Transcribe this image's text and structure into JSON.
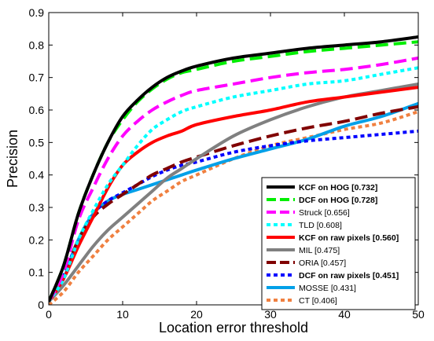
{
  "chart_data": {
    "type": "line",
    "xlabel": "Location error threshold",
    "ylabel": "Precision",
    "xlim": [
      0,
      50
    ],
    "ylim": [
      0,
      0.9
    ],
    "xticks": [
      "0",
      "10",
      "20",
      "30",
      "40",
      "50"
    ],
    "yticks": [
      "0",
      "0.1",
      "0.2",
      "0.3",
      "0.4",
      "0.5",
      "0.6",
      "0.7",
      "0.8",
      "0.9"
    ],
    "grid": false,
    "legend_position": "lower-right",
    "x": [
      0,
      2,
      4,
      6,
      8,
      10,
      12,
      14,
      16,
      18,
      20,
      25,
      30,
      35,
      40,
      45,
      50
    ],
    "series": [
      {
        "name": "KCF on HOG [0.732]",
        "bold": true,
        "color": "#000000",
        "style": "solid",
        "values": [
          0.01,
          0.12,
          0.28,
          0.4,
          0.5,
          0.58,
          0.63,
          0.67,
          0.7,
          0.72,
          0.735,
          0.76,
          0.775,
          0.79,
          0.8,
          0.81,
          0.825
        ]
      },
      {
        "name": "DCF on HOG [0.728]",
        "bold": true,
        "color": "#00ee00",
        "style": "dashed",
        "values": [
          0.01,
          0.12,
          0.28,
          0.4,
          0.5,
          0.57,
          0.625,
          0.665,
          0.695,
          0.715,
          0.725,
          0.75,
          0.765,
          0.78,
          0.79,
          0.8,
          0.81
        ]
      },
      {
        "name": "Struck [0.656]",
        "bold": false,
        "color": "#ff00ff",
        "style": "dashed",
        "values": [
          0.01,
          0.1,
          0.26,
          0.36,
          0.45,
          0.52,
          0.565,
          0.6,
          0.625,
          0.645,
          0.66,
          0.68,
          0.7,
          0.715,
          0.725,
          0.74,
          0.76
        ]
      },
      {
        "name": "TLD [0.608]",
        "bold": false,
        "color": "#00ffff",
        "style": "dotted",
        "values": [
          0.01,
          0.08,
          0.2,
          0.29,
          0.37,
          0.43,
          0.49,
          0.54,
          0.57,
          0.595,
          0.61,
          0.64,
          0.66,
          0.68,
          0.69,
          0.71,
          0.73
        ]
      },
      {
        "name": "KCF on raw pixels [0.560]",
        "bold": true,
        "color": "#ff0000",
        "style": "solid",
        "values": [
          0.01,
          0.08,
          0.18,
          0.27,
          0.36,
          0.43,
          0.47,
          0.5,
          0.52,
          0.535,
          0.555,
          0.58,
          0.6,
          0.625,
          0.64,
          0.655,
          0.67
        ]
      },
      {
        "name": "MIL [0.475]",
        "bold": false,
        "color": "#808080",
        "style": "solid",
        "values": [
          0.01,
          0.06,
          0.12,
          0.18,
          0.23,
          0.27,
          0.31,
          0.35,
          0.39,
          0.42,
          0.45,
          0.52,
          0.57,
          0.61,
          0.64,
          0.66,
          0.68
        ]
      },
      {
        "name": "ORIA [0.457]",
        "bold": false,
        "color": "#800000",
        "style": "dashed",
        "values": [
          0.01,
          0.09,
          0.2,
          0.27,
          0.31,
          0.34,
          0.37,
          0.4,
          0.42,
          0.44,
          0.455,
          0.49,
          0.52,
          0.545,
          0.565,
          0.59,
          0.61
        ]
      },
      {
        "name": "DCF on raw pixels [0.451]",
        "bold": true,
        "color": "#0000ff",
        "style": "dotted",
        "values": [
          0.01,
          0.09,
          0.2,
          0.28,
          0.32,
          0.345,
          0.37,
          0.395,
          0.415,
          0.43,
          0.44,
          0.47,
          0.49,
          0.505,
          0.515,
          0.525,
          0.535
        ]
      },
      {
        "name": "MOSSE [0.431]",
        "bold": false,
        "color": "#00a0e8",
        "style": "solid",
        "values": [
          0.01,
          0.08,
          0.2,
          0.28,
          0.32,
          0.34,
          0.355,
          0.37,
          0.385,
          0.4,
          0.415,
          0.45,
          0.48,
          0.51,
          0.55,
          0.58,
          0.62
        ]
      },
      {
        "name": "CT [0.406]",
        "bold": false,
        "color": "#f08040",
        "style": "dotted",
        "values": [
          0.0,
          0.04,
          0.1,
          0.15,
          0.2,
          0.24,
          0.28,
          0.32,
          0.35,
          0.38,
          0.4,
          0.45,
          0.49,
          0.515,
          0.54,
          0.56,
          0.595
        ]
      }
    ]
  }
}
